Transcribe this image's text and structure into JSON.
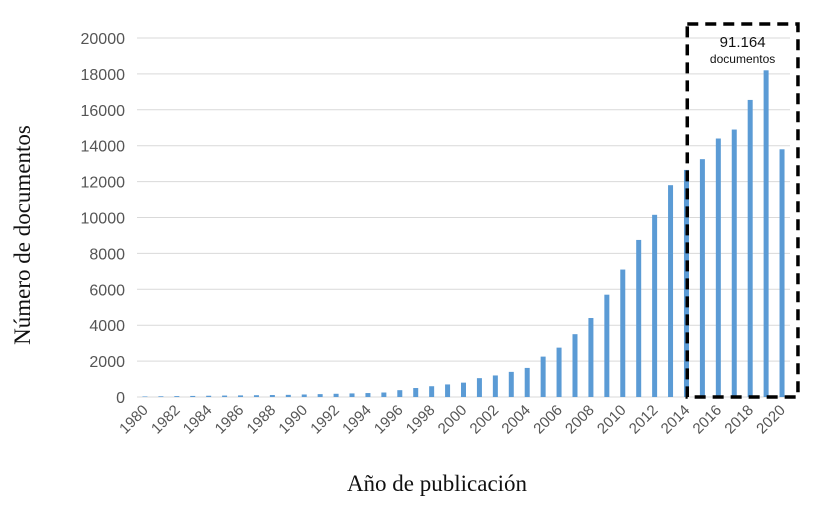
{
  "chart_data": {
    "type": "bar",
    "xlabel": "Año de publicación",
    "ylabel": "Número de documentos",
    "ylim": [
      0,
      20000
    ],
    "yticks": [
      0,
      2000,
      4000,
      6000,
      8000,
      10000,
      12000,
      14000,
      16000,
      18000,
      20000
    ],
    "grid": "horizontal",
    "colors": {
      "bar": "#5b9bd5",
      "grid": "#d9d9d9",
      "highlight_box": "#000000"
    },
    "categories": [
      "1980",
      "1981",
      "1982",
      "1983",
      "1984",
      "1985",
      "1986",
      "1987",
      "1988",
      "1989",
      "1990",
      "1991",
      "1992",
      "1993",
      "1994",
      "1995",
      "1996",
      "1997",
      "1998",
      "1999",
      "2000",
      "2001",
      "2002",
      "2003",
      "2004",
      "2005",
      "2006",
      "2007",
      "2008",
      "2009",
      "2010",
      "2011",
      "2012",
      "2013",
      "2014",
      "2015",
      "2016",
      "2017",
      "2018",
      "2019",
      "2020"
    ],
    "x_tick_labels": [
      "1980",
      "1982",
      "1984",
      "1986",
      "1988",
      "1990",
      "1992",
      "1994",
      "1996",
      "1998",
      "2000",
      "2002",
      "2004",
      "2006",
      "2008",
      "2010",
      "2012",
      "2014",
      "2016",
      "2018",
      "2020"
    ],
    "values": [
      30,
      40,
      50,
      60,
      70,
      80,
      90,
      100,
      110,
      120,
      140,
      160,
      180,
      200,
      220,
      250,
      380,
      500,
      600,
      700,
      800,
      1050,
      1200,
      1400,
      1620,
      2250,
      2750,
      3500,
      4400,
      5700,
      7100,
      8750,
      10150,
      11800,
      12650,
      13250,
      14400,
      14900,
      16550,
      18200,
      13800
    ],
    "annotation": {
      "value": "91.164",
      "label": "documentos",
      "from_category": "2015",
      "to_category": "2020"
    }
  }
}
